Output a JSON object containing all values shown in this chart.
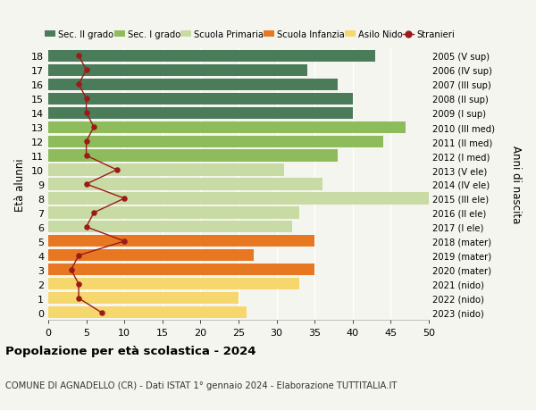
{
  "ages": [
    0,
    1,
    2,
    3,
    4,
    5,
    6,
    7,
    8,
    9,
    10,
    11,
    12,
    13,
    14,
    15,
    16,
    17,
    18
  ],
  "right_labels": [
    "2023 (nido)",
    "2022 (nido)",
    "2021 (nido)",
    "2020 (mater)",
    "2019 (mater)",
    "2018 (mater)",
    "2017 (I ele)",
    "2016 (II ele)",
    "2015 (III ele)",
    "2014 (IV ele)",
    "2013 (V ele)",
    "2012 (I med)",
    "2011 (II med)",
    "2010 (III med)",
    "2009 (I sup)",
    "2008 (II sup)",
    "2007 (III sup)",
    "2006 (IV sup)",
    "2005 (V sup)"
  ],
  "bar_values": [
    26,
    25,
    33,
    35,
    27,
    35,
    32,
    33,
    50,
    36,
    31,
    38,
    44,
    47,
    40,
    40,
    38,
    34,
    43
  ],
  "bar_colors": [
    "#f5d76e",
    "#f5d76e",
    "#f5d76e",
    "#e87722",
    "#e87722",
    "#e87722",
    "#c9dba4",
    "#c9dba4",
    "#c9dba4",
    "#c9dba4",
    "#c9dba4",
    "#8fbc5a",
    "#8fbc5a",
    "#8fbc5a",
    "#4a7c59",
    "#4a7c59",
    "#4a7c59",
    "#4a7c59",
    "#4a7c59"
  ],
  "stranieri_values": [
    7,
    4,
    4,
    3,
    4,
    10,
    5,
    6,
    10,
    5,
    9,
    5,
    5,
    6,
    5,
    5,
    4,
    5,
    4
  ],
  "xlim": [
    0,
    50
  ],
  "xticks": [
    0,
    5,
    10,
    15,
    20,
    25,
    30,
    35,
    40,
    45,
    50
  ],
  "legend_entries": [
    {
      "label": "Sec. II grado",
      "color": "#4a7c59"
    },
    {
      "label": "Sec. I grado",
      "color": "#8fbc5a"
    },
    {
      "label": "Scuola Primaria",
      "color": "#c9dba4"
    },
    {
      "label": "Scuola Infanzia",
      "color": "#e87722"
    },
    {
      "label": "Asilo Nido",
      "color": "#f5d76e"
    },
    {
      "label": "Stranieri",
      "color": "#9b1a1a"
    }
  ],
  "xlabel": "Età alunni",
  "ylabel_right": "Anni di nascita",
  "title": "Popolazione per età scolastica - 2024",
  "subtitle": "COMUNE DI AGNADELLO (CR) - Dati ISTAT 1° gennaio 2024 - Elaborazione TUTTITALIA.IT",
  "background_color": "#f5f5f0",
  "grid_color": "#ffffff",
  "bar_height": 0.82
}
